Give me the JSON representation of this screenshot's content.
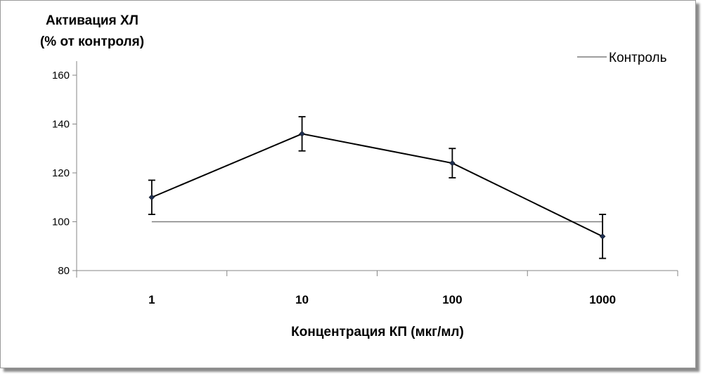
{
  "chart_data": {
    "type": "line",
    "ylabel_line1": "Активация ХЛ",
    "ylabel_line2": "(% от контроля)",
    "xlabel": "Концентрация КП (мкг/мл)",
    "categories": [
      "1",
      "10",
      "100",
      "1000"
    ],
    "ylim": [
      80,
      160
    ],
    "yticks": [
      80,
      100,
      120,
      140,
      160
    ],
    "grid": false,
    "legend_position": "top-right",
    "series": [
      {
        "values": [
          110,
          136,
          124,
          94
        ],
        "error": [
          7,
          7,
          6,
          9
        ],
        "color": "#000000",
        "marker": "diamond"
      },
      {
        "name": "Контроль",
        "values": [
          100,
          100,
          100,
          100
        ],
        "color": "#7f7f7f"
      }
    ]
  }
}
